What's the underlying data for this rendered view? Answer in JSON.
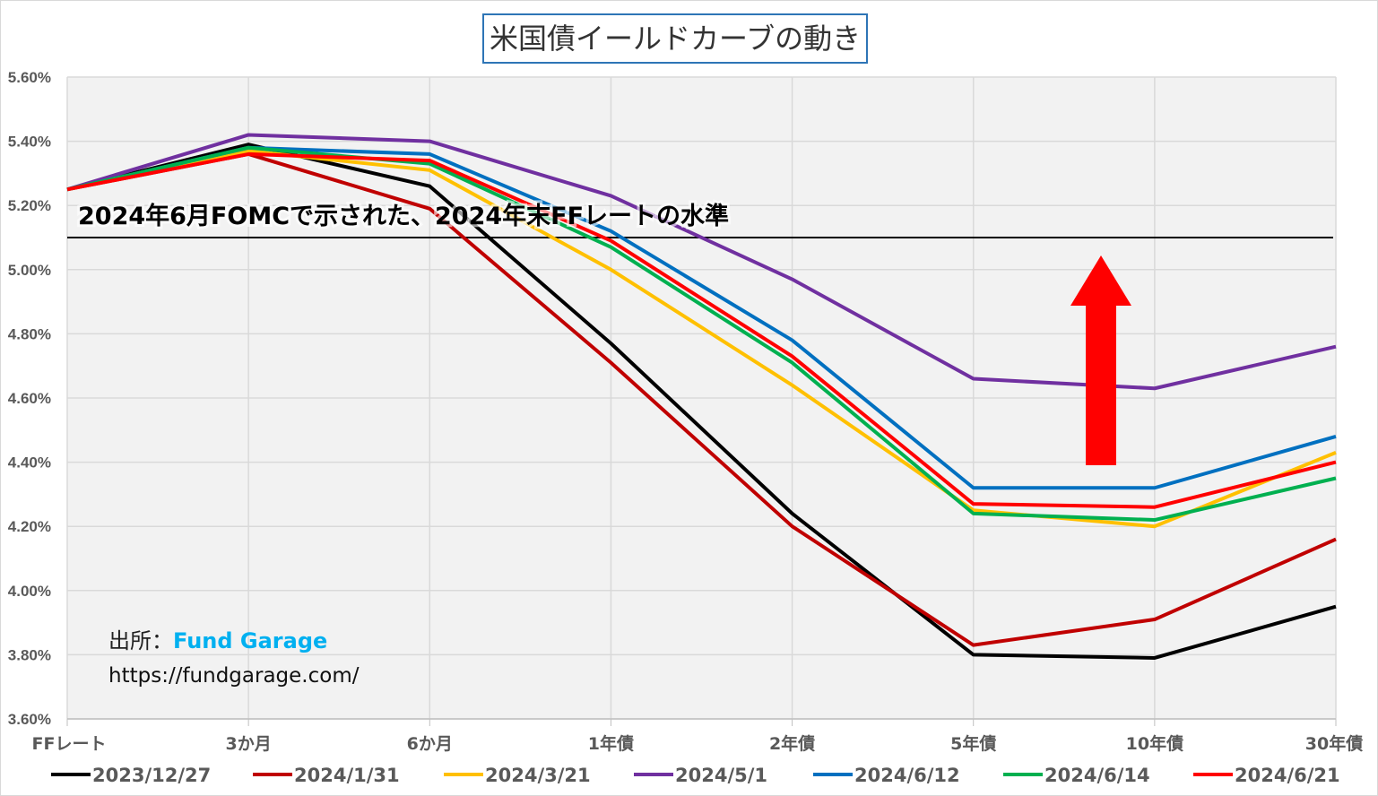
{
  "chart_data": {
    "type": "line",
    "title": "米国債イールドカーブの動き",
    "categories": [
      "FFレート",
      "3か月",
      "6か月",
      "1年債",
      "2年債",
      "5年債",
      "10年債",
      "30年債"
    ],
    "ylim": [
      3.6,
      5.6
    ],
    "yticks": [
      "3.60%",
      "3.80%",
      "4.00%",
      "4.20%",
      "4.40%",
      "4.60%",
      "4.80%",
      "5.00%",
      "5.20%",
      "5.40%",
      "5.60%"
    ],
    "grid": true,
    "legend_position": "bottom",
    "series": [
      {
        "name": "2023/12/27",
        "color": "#000000",
        "values": [
          5.25,
          5.39,
          5.26,
          4.77,
          4.24,
          3.8,
          3.79,
          3.95
        ]
      },
      {
        "name": "2024/1/31",
        "color": "#c00000",
        "values": [
          5.25,
          5.36,
          5.19,
          4.71,
          4.2,
          3.83,
          3.91,
          4.16
        ]
      },
      {
        "name": "2024/3/21",
        "color": "#ffc000",
        "values": [
          5.25,
          5.37,
          5.31,
          5.0,
          4.64,
          4.25,
          4.2,
          4.43
        ]
      },
      {
        "name": "2024/5/1",
        "color": "#7030a0",
        "values": [
          5.25,
          5.42,
          5.4,
          5.23,
          4.97,
          4.66,
          4.63,
          4.76
        ]
      },
      {
        "name": "2024/6/12",
        "color": "#0070c0",
        "values": [
          5.25,
          5.38,
          5.36,
          5.12,
          4.78,
          4.32,
          4.32,
          4.48
        ]
      },
      {
        "name": "2024/6/14",
        "color": "#00b050",
        "values": [
          5.25,
          5.38,
          5.33,
          5.07,
          4.71,
          4.24,
          4.22,
          4.35
        ]
      },
      {
        "name": "2024/6/21",
        "color": "#ff0000",
        "values": [
          5.25,
          5.36,
          5.34,
          5.09,
          4.73,
          4.27,
          4.26,
          4.4
        ]
      }
    ],
    "reference_line": {
      "value": 5.1,
      "label": "2024年6月FOMCで示された、2024年末FFレートの水準"
    },
    "annotation_arrow": {
      "direction": "up",
      "color": "#ff0000"
    }
  },
  "source": {
    "label": "出所：",
    "brand": "Fund Garage",
    "url": "https://fundgarage.com/"
  }
}
